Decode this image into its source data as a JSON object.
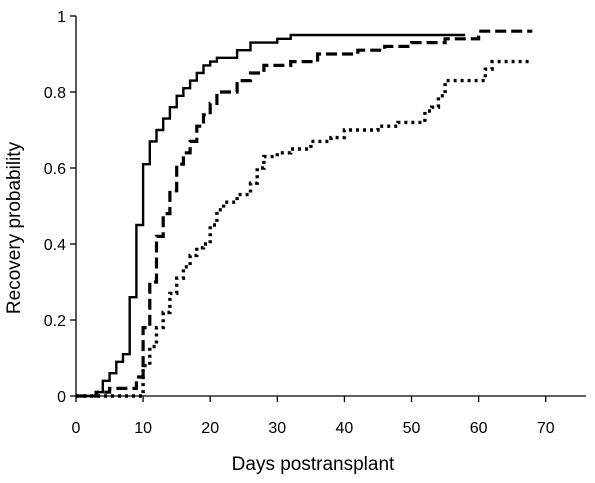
{
  "chart_data": {
    "type": "line",
    "title": "",
    "xlabel": "Days postransplant",
    "ylabel": "Recovery probability",
    "xlim": [
      0,
      76
    ],
    "ylim": [
      0,
      1
    ],
    "xticks": [
      0,
      10,
      20,
      30,
      40,
      50,
      60,
      70
    ],
    "yticks": [
      0,
      0.2,
      0.4,
      0.6,
      0.8,
      1
    ],
    "ytick_labels": [
      "0",
      "0.2",
      "0.4",
      "0.6",
      "0.8",
      "1"
    ],
    "grid": false,
    "legend": "none",
    "series": [
      {
        "style": "solid",
        "color": "#000000",
        "step": true,
        "x": [
          0,
          3,
          4,
          5,
          6,
          7,
          8,
          9,
          10,
          11,
          12,
          13,
          14,
          15,
          16,
          17,
          18,
          19,
          20,
          21,
          22,
          24,
          26,
          28,
          30,
          32,
          58
        ],
        "y": [
          0,
          0.01,
          0.04,
          0.06,
          0.09,
          0.11,
          0.26,
          0.45,
          0.61,
          0.67,
          0.7,
          0.73,
          0.76,
          0.79,
          0.81,
          0.83,
          0.85,
          0.87,
          0.88,
          0.89,
          0.89,
          0.91,
          0.93,
          0.93,
          0.94,
          0.95,
          0.95
        ]
      },
      {
        "style": "dashed",
        "color": "#000000",
        "step": true,
        "x": [
          0,
          3,
          5,
          8,
          9,
          10,
          11,
          12,
          13,
          14,
          15,
          16,
          17,
          18,
          19,
          20,
          21,
          22,
          24,
          26,
          28,
          30,
          32,
          36,
          42,
          46,
          50,
          55,
          60,
          68
        ],
        "y": [
          0,
          0.01,
          0.02,
          0.02,
          0.05,
          0.18,
          0.3,
          0.42,
          0.48,
          0.54,
          0.61,
          0.64,
          0.67,
          0.71,
          0.74,
          0.77,
          0.8,
          0.8,
          0.83,
          0.85,
          0.87,
          0.87,
          0.88,
          0.9,
          0.91,
          0.92,
          0.93,
          0.94,
          0.96,
          0.96
        ]
      },
      {
        "style": "dotted",
        "color": "#000000",
        "step": true,
        "x": [
          0,
          9,
          10,
          11,
          12,
          13,
          14,
          15,
          16,
          17,
          18,
          19,
          20,
          21,
          22,
          24,
          26,
          27,
          28,
          30,
          32,
          35,
          38,
          40,
          42,
          45,
          48,
          50,
          52,
          53,
          54,
          55,
          60,
          61,
          62,
          68
        ],
        "y": [
          0,
          0,
          0.08,
          0.13,
          0.18,
          0.22,
          0.27,
          0.31,
          0.34,
          0.37,
          0.39,
          0.4,
          0.45,
          0.49,
          0.51,
          0.53,
          0.56,
          0.6,
          0.63,
          0.64,
          0.65,
          0.67,
          0.68,
          0.7,
          0.7,
          0.71,
          0.72,
          0.72,
          0.75,
          0.76,
          0.79,
          0.83,
          0.83,
          0.86,
          0.88,
          0.88
        ]
      }
    ]
  }
}
